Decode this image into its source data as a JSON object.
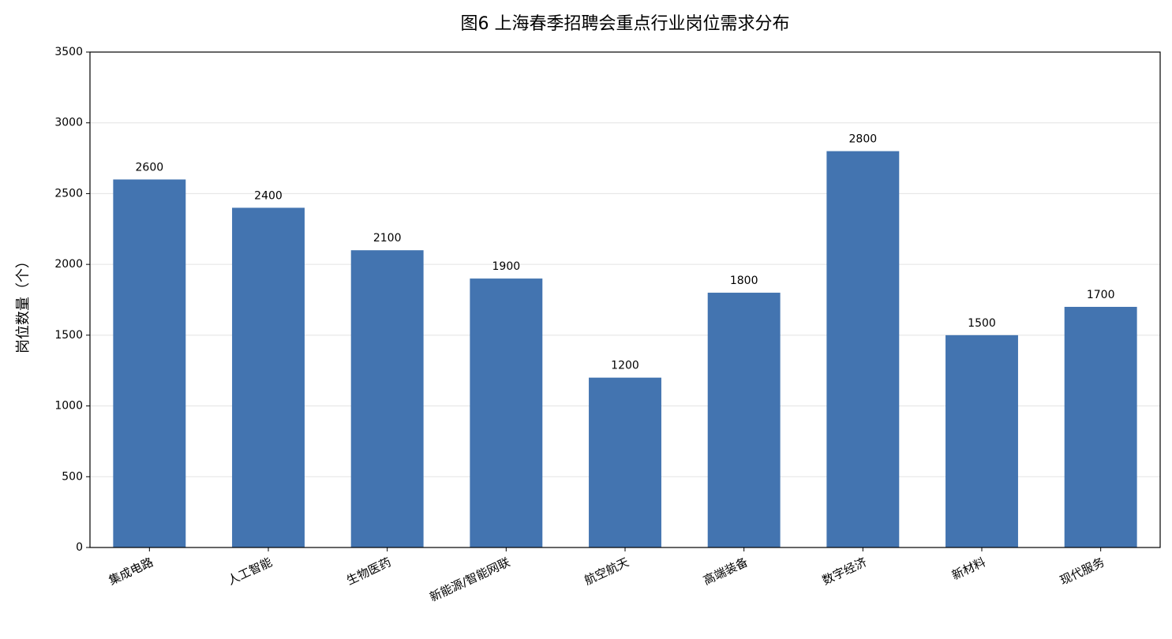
{
  "chart_data": {
    "type": "bar",
    "title": "图6 上海春季招聘会重点行业岗位需求分布",
    "y_label": "岗位数量（个）",
    "categories": [
      "集成电路",
      "人工智能",
      "生物医药",
      "新能源/智能网联",
      "航空航天",
      "高端装备",
      "数字经济",
      "新材料",
      "现代服务"
    ],
    "values": [
      2600,
      2400,
      2100,
      1900,
      1200,
      1800,
      2800,
      1500,
      1700
    ],
    "color": "#4374b0",
    "ylim": [
      0,
      3500
    ],
    "yticks": [
      0,
      500,
      1000,
      1500,
      2000,
      2500,
      3000,
      3500
    ],
    "grid": true
  }
}
